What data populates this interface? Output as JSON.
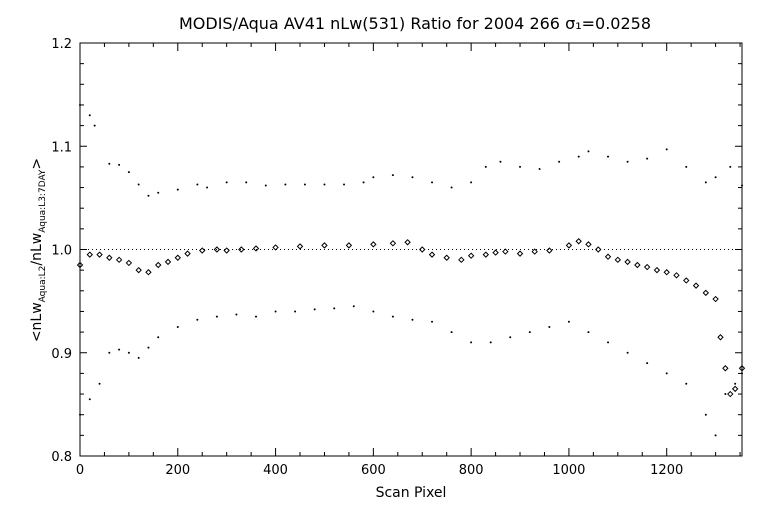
{
  "chart_data": {
    "type": "scatter",
    "title": "MODIS/Aqua AV41 nLw(531) Ratio for 2004 266 σ₁=0.0258",
    "xlabel": "Scan Pixel",
    "ylabel": "<nLwAqua:L2/nLwAqua:L3:7DAY>",
    "ylabel_parts": {
      "open": "<nLw",
      "sub1": "Aqua:L2",
      "mid": "/nLw",
      "sub2": "Aqua:L3:7DAY",
      "close": ">"
    },
    "xlim": [
      0,
      1354
    ],
    "ylim": [
      0.8,
      1.2
    ],
    "x_ticks": [
      0,
      200,
      400,
      600,
      800,
      1000,
      1200
    ],
    "y_ticks": [
      0.8,
      0.9,
      1.0,
      1.1,
      1.2
    ],
    "x_tick_labels": [
      "0",
      "200",
      "400",
      "600",
      "800",
      "1000",
      "1200"
    ],
    "y_tick_labels": [
      "0.8",
      "0.9",
      "1.0",
      "1.1",
      "1.2"
    ],
    "reference_line": 1.0,
    "grid": false,
    "legend": "none",
    "series": [
      {
        "style": "diamonds",
        "x": [
          0,
          20,
          40,
          60,
          80,
          100,
          120,
          140,
          160,
          180,
          200,
          220,
          250,
          280,
          300,
          330,
          360,
          400,
          450,
          500,
          550,
          600,
          640,
          670,
          700,
          720,
          750,
          780,
          800,
          830,
          850,
          870,
          900,
          930,
          960,
          1000,
          1020,
          1040,
          1060,
          1080,
          1100,
          1120,
          1140,
          1160,
          1180,
          1200,
          1220,
          1240,
          1260,
          1280,
          1300,
          1310,
          1320,
          1330,
          1340,
          1354
        ],
        "y": [
          0.985,
          0.995,
          0.995,
          0.992,
          0.99,
          0.987,
          0.98,
          0.978,
          0.985,
          0.988,
          0.992,
          0.996,
          0.999,
          1.0,
          0.999,
          1.0,
          1.001,
          1.002,
          1.003,
          1.004,
          1.004,
          1.005,
          1.006,
          1.007,
          1.0,
          0.995,
          0.992,
          0.99,
          0.994,
          0.995,
          0.997,
          0.998,
          0.996,
          0.998,
          0.999,
          1.004,
          1.008,
          1.005,
          1.0,
          0.993,
          0.99,
          0.988,
          0.985,
          0.983,
          0.98,
          0.978,
          0.975,
          0.97,
          0.965,
          0.958,
          0.952,
          0.915,
          0.885,
          0.86,
          0.865,
          0.885
        ]
      },
      {
        "style": "dots",
        "name": "",
        "x": [
          0,
          20,
          30,
          60,
          80,
          100,
          120,
          140,
          160,
          200,
          240,
          260,
          300,
          340,
          380,
          420,
          460,
          500,
          540,
          580,
          600,
          640,
          680,
          720,
          760,
          800,
          830,
          860,
          900,
          940,
          980,
          1020,
          1040,
          1080,
          1120,
          1160,
          1200,
          1240,
          1280,
          1300,
          1330,
          1354
        ],
        "y": [
          1.14,
          1.13,
          1.12,
          1.083,
          1.082,
          1.075,
          1.063,
          1.052,
          1.055,
          1.058,
          1.063,
          1.06,
          1.065,
          1.065,
          1.062,
          1.063,
          1.063,
          1.063,
          1.063,
          1.065,
          1.07,
          1.072,
          1.07,
          1.065,
          1.06,
          1.065,
          1.08,
          1.085,
          1.08,
          1.078,
          1.085,
          1.09,
          1.095,
          1.09,
          1.085,
          1.088,
          1.097,
          1.08,
          1.065,
          1.07,
          1.08,
          1.062
        ]
      },
      {
        "style": "dots",
        "name": "",
        "x": [
          0,
          20,
          40,
          60,
          80,
          100,
          120,
          140,
          160,
          200,
          240,
          280,
          320,
          360,
          400,
          440,
          480,
          520,
          560,
          600,
          640,
          680,
          720,
          760,
          800,
          840,
          880,
          920,
          960,
          1000,
          1040,
          1080,
          1120,
          1160,
          1200,
          1240,
          1280,
          1300,
          1320,
          1340,
          1354
        ],
        "y": [
          0.84,
          0.855,
          0.87,
          0.9,
          0.903,
          0.9,
          0.895,
          0.905,
          0.915,
          0.925,
          0.932,
          0.935,
          0.937,
          0.935,
          0.94,
          0.94,
          0.942,
          0.943,
          0.945,
          0.94,
          0.935,
          0.932,
          0.93,
          0.92,
          0.91,
          0.91,
          0.915,
          0.92,
          0.925,
          0.93,
          0.92,
          0.91,
          0.9,
          0.89,
          0.88,
          0.87,
          0.84,
          0.82,
          0.86,
          0.87,
          0.88
        ]
      }
    ]
  }
}
